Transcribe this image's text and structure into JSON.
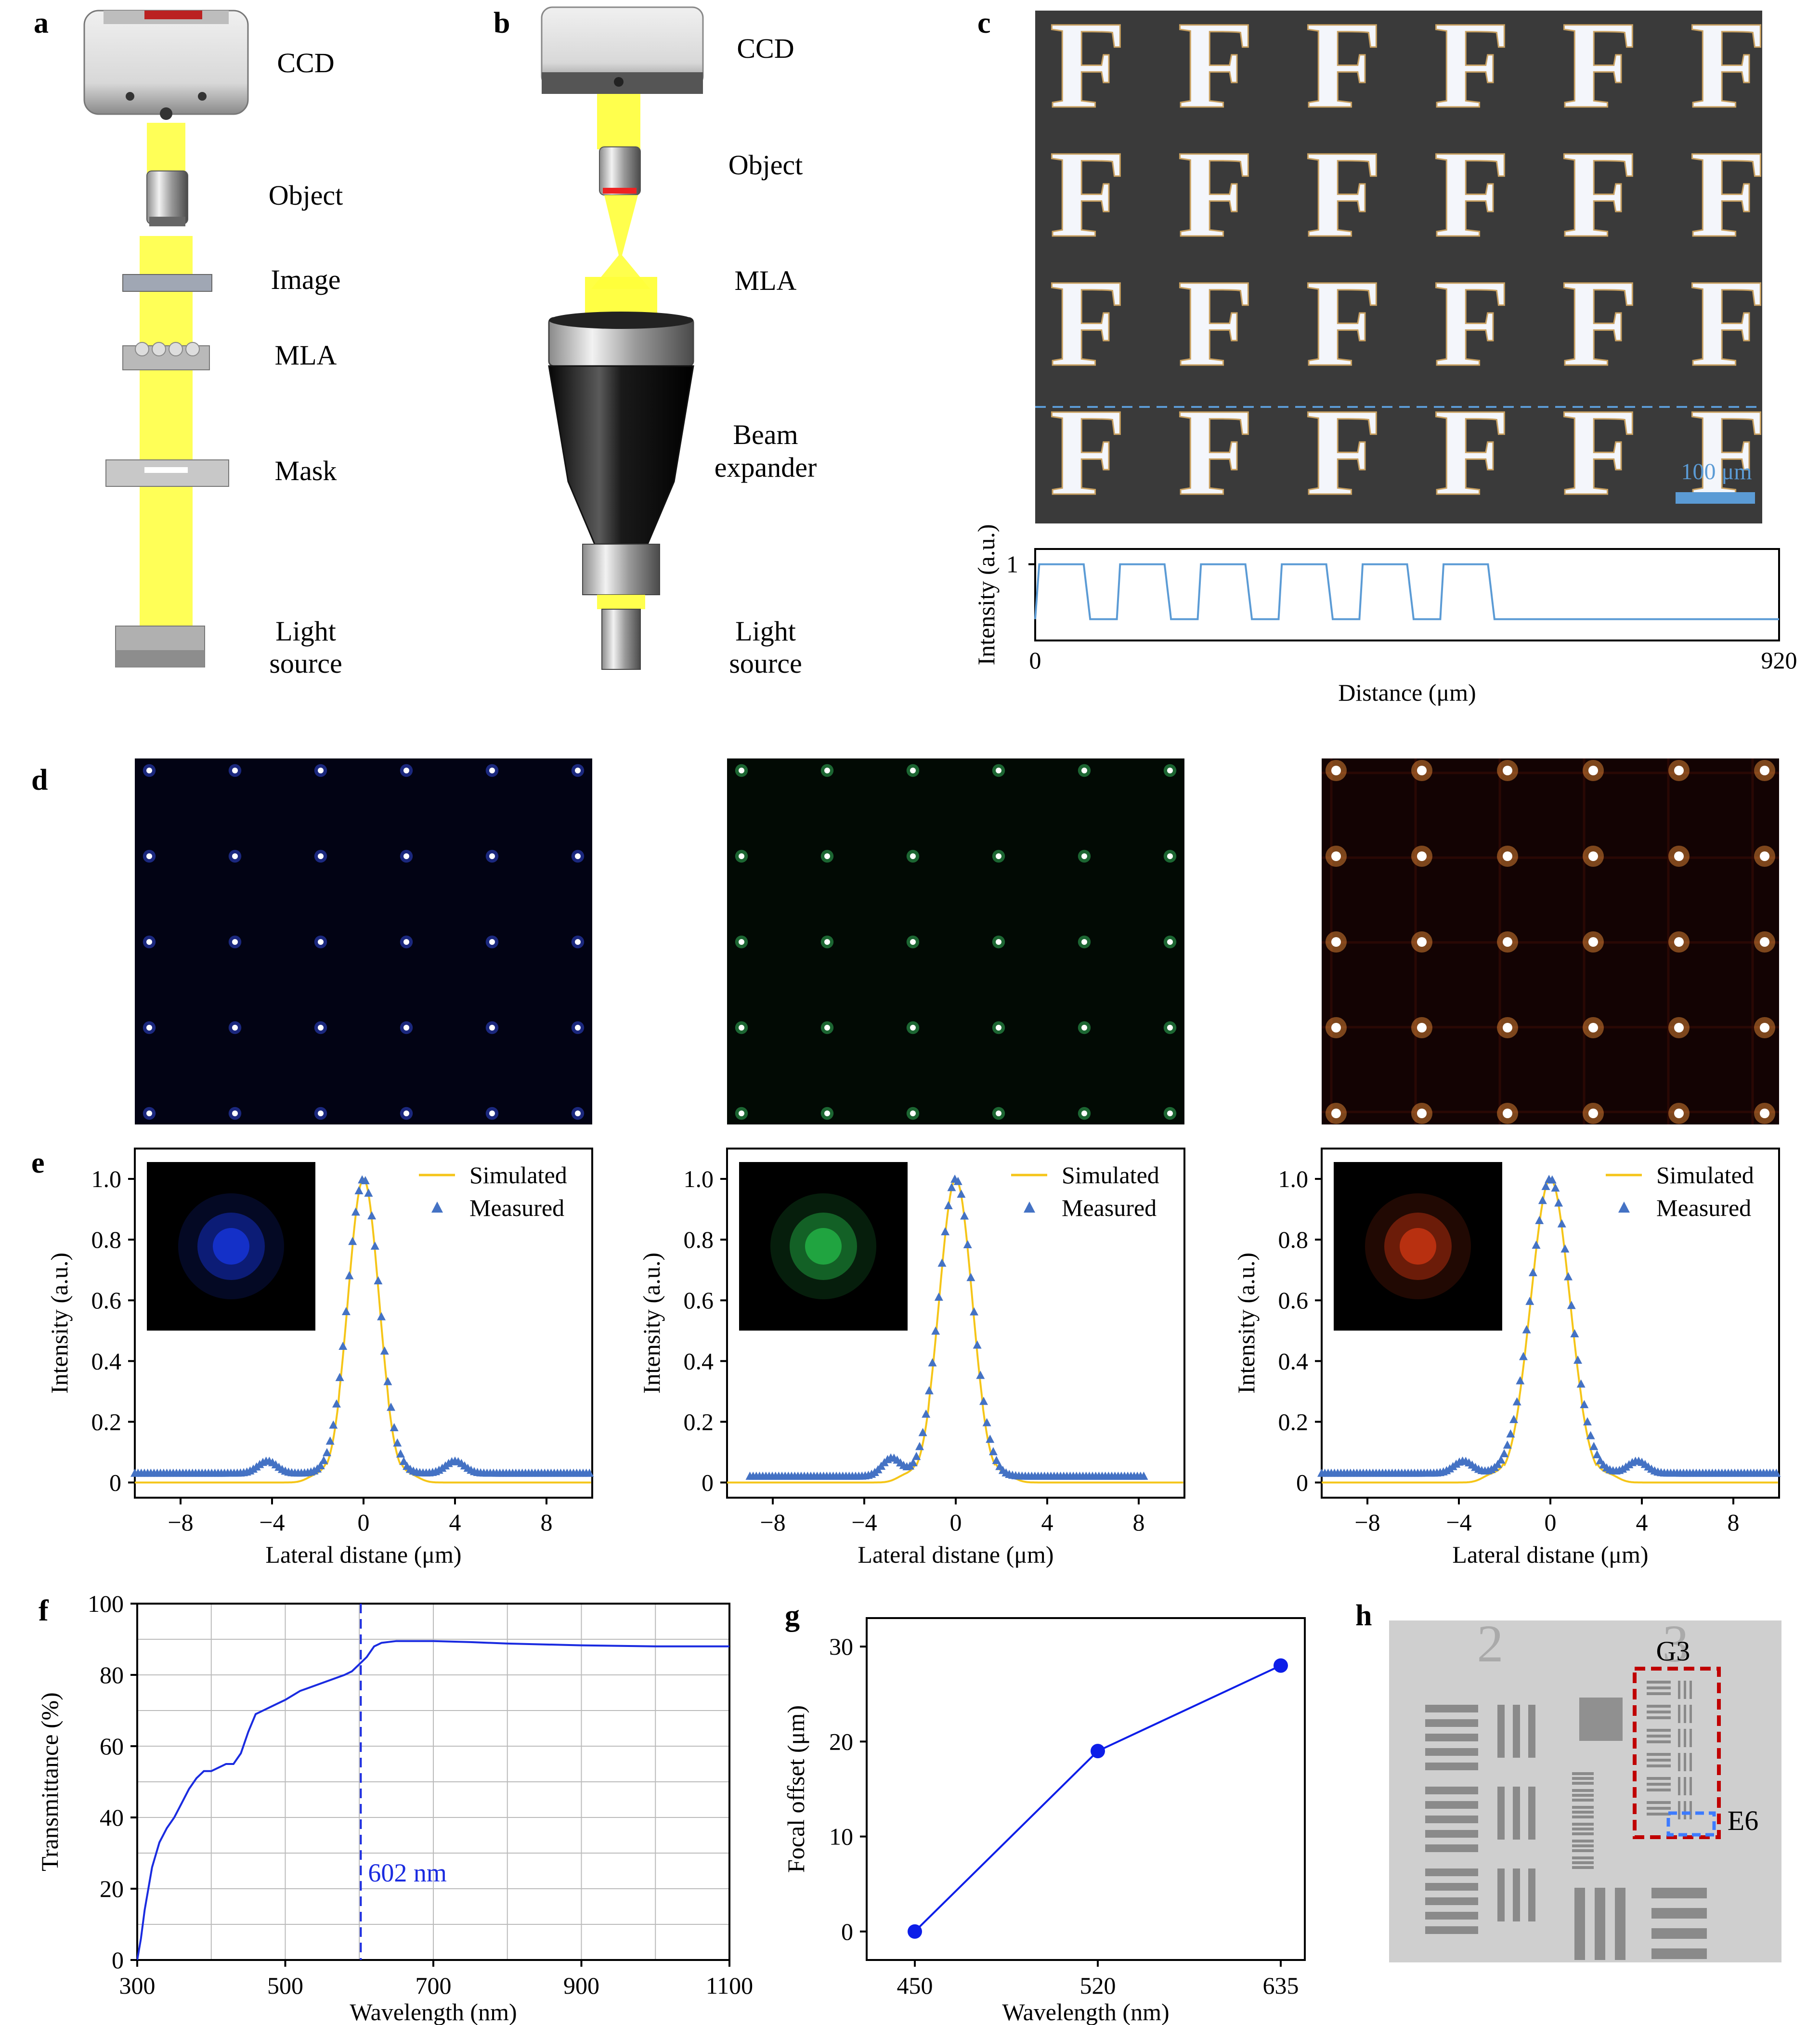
{
  "panel_labels": {
    "a": "a",
    "b": "b",
    "c": "c",
    "d": "d",
    "e": "e",
    "f": "f",
    "g": "g",
    "h": "h"
  },
  "panel_a": {
    "labels": [
      "CCD",
      "Object",
      "Image",
      "MLA",
      "Mask",
      "Light",
      "source"
    ]
  },
  "panel_b": {
    "labels": [
      "CCD",
      "Object",
      "MLA",
      "Beam",
      "expander",
      "Light",
      "source"
    ]
  },
  "panel_c": {
    "scale_bar": "100 μm",
    "letter": "F",
    "chart_data": {
      "type": "line",
      "xlabel": "Distance (μm)",
      "ylabel": "Intensity (a.u.)",
      "xlim": [
        0,
        920
      ],
      "ylim": [
        0,
        1.2
      ],
      "x_ticks": [
        "0",
        "920"
      ],
      "y_ticks": [
        "1"
      ],
      "period": 100,
      "high": 1.0,
      "low": 0.28,
      "high_starts": [
        5,
        105,
        205,
        305,
        405,
        505
      ],
      "high_ends": [
        60,
        160,
        260,
        360,
        460,
        560
      ]
    },
    "colors": {
      "line": "#5b9bd5",
      "dash": "#5b9bd5"
    }
  },
  "panel_d": {
    "colors": [
      "#3a56ff",
      "#3cd66a",
      "#ff9a3c"
    ],
    "backgrounds": [
      "#020314",
      "#020a04",
      "#130303"
    ]
  },
  "panel_e": {
    "chart_data": [
      {
        "type": "line",
        "xlabel": "Lateral distane (μm)",
        "ylabel": "Intensity (a.u.)",
        "xlim": [
          -10,
          10
        ],
        "ylim": [
          -0.05,
          1.1
        ],
        "x_ticks": [
          "−8",
          "−4",
          "0",
          "4",
          "8"
        ],
        "y_ticks": [
          "0",
          "0.2",
          "0.4",
          "0.6",
          "0.8",
          "1.0"
        ],
        "series": [
          {
            "name": "Simulated",
            "color": "#f5c518"
          },
          {
            "name": "Measured",
            "color": "#4472c4"
          }
        ],
        "sigma": 0.68,
        "baseline": 0.03,
        "sidelobe": [
          {
            "x": -4.2,
            "h": 0.04
          },
          {
            "x": 4.0,
            "h": 0.04
          }
        ],
        "meas_range": [
          -10,
          10
        ],
        "inset_color": "#1430c8"
      },
      {
        "type": "line",
        "xlabel": "Lateral distane (μm)",
        "ylabel": "Intensity (a.u.)",
        "xlim": [
          -10,
          10
        ],
        "ylim": [
          -0.05,
          1.1
        ],
        "x_ticks": [
          "−8",
          "−4",
          "0",
          "4",
          "8"
        ],
        "y_ticks": [
          "0",
          "0.2",
          "0.4",
          "0.6",
          "0.8",
          "1.0"
        ],
        "series": [
          {
            "name": "Simulated",
            "color": "#f5c518"
          },
          {
            "name": "Measured",
            "color": "#4472c4"
          }
        ],
        "sigma": 0.72,
        "baseline": 0.02,
        "sidelobe": [
          {
            "x": -2.8,
            "h": 0.06
          }
        ],
        "meas_range": [
          -9,
          8.3
        ],
        "inset_color": "#20a440"
      },
      {
        "type": "line",
        "xlabel": "Lateral distane (μm)",
        "ylabel": "Intensity (a.u.)",
        "xlim": [
          -10,
          10
        ],
        "ylim": [
          -0.05,
          1.1
        ],
        "x_ticks": [
          "−8",
          "−4",
          "0",
          "4",
          "8"
        ],
        "y_ticks": [
          "0",
          "0.2",
          "0.4",
          "0.6",
          "0.8",
          "1.0"
        ],
        "series": [
          {
            "name": "Simulated",
            "color": "#f5c518"
          },
          {
            "name": "Measured",
            "color": "#4472c4"
          }
        ],
        "sigma": 0.85,
        "baseline": 0.03,
        "sidelobe": [
          {
            "x": -3.8,
            "h": 0.04
          },
          {
            "x": 3.8,
            "h": 0.04
          }
        ],
        "meas_range": [
          -10,
          10
        ],
        "inset_color": "#b83010"
      }
    ]
  },
  "panel_f": {
    "annotation": "602 nm",
    "chart_data": {
      "type": "line",
      "xlabel": "Wavelength (nm)",
      "ylabel": "Transmittance (%)",
      "xlim": [
        300,
        1100
      ],
      "ylim": [
        0,
        100
      ],
      "x_ticks": [
        "300",
        "500",
        "700",
        "900",
        "1100"
      ],
      "y_ticks": [
        "0",
        "20",
        "40",
        "60",
        "80",
        "100"
      ],
      "x": [
        300,
        305,
        310,
        320,
        330,
        340,
        350,
        360,
        370,
        380,
        390,
        400,
        410,
        420,
        430,
        440,
        450,
        460,
        470,
        480,
        490,
        500,
        520,
        540,
        560,
        580,
        590,
        600,
        610,
        620,
        630,
        650,
        700,
        750,
        800,
        900,
        1000,
        1100
      ],
      "y": [
        0,
        6,
        14,
        26,
        33,
        37,
        40,
        44,
        48,
        51,
        53,
        53,
        54,
        55,
        55,
        58,
        64,
        69,
        70,
        71,
        72,
        73,
        75.5,
        77,
        78.5,
        80,
        81,
        83,
        85,
        88,
        89,
        89.5,
        89.5,
        89.2,
        88.8,
        88.3,
        88,
        88
      ],
      "marker_x": 602,
      "color": "#1a2be0"
    }
  },
  "panel_g": {
    "chart_data": {
      "type": "line",
      "xlabel": "Wavelength (nm)",
      "ylabel": "Focal offset (μm)",
      "categories": [
        "450",
        "520",
        "635"
      ],
      "values": [
        0,
        19,
        28
      ],
      "ylim": [
        -3,
        33
      ],
      "y_ticks": [
        "0",
        "10",
        "20",
        "30"
      ],
      "color": "#0d1ee8"
    }
  },
  "panel_h": {
    "labels": {
      "g3": "G3",
      "e6": "E6",
      "group2": "2",
      "group3": "3"
    },
    "colors": {
      "g3_box": "#c00000",
      "e6_box": "#3d7bff"
    }
  }
}
